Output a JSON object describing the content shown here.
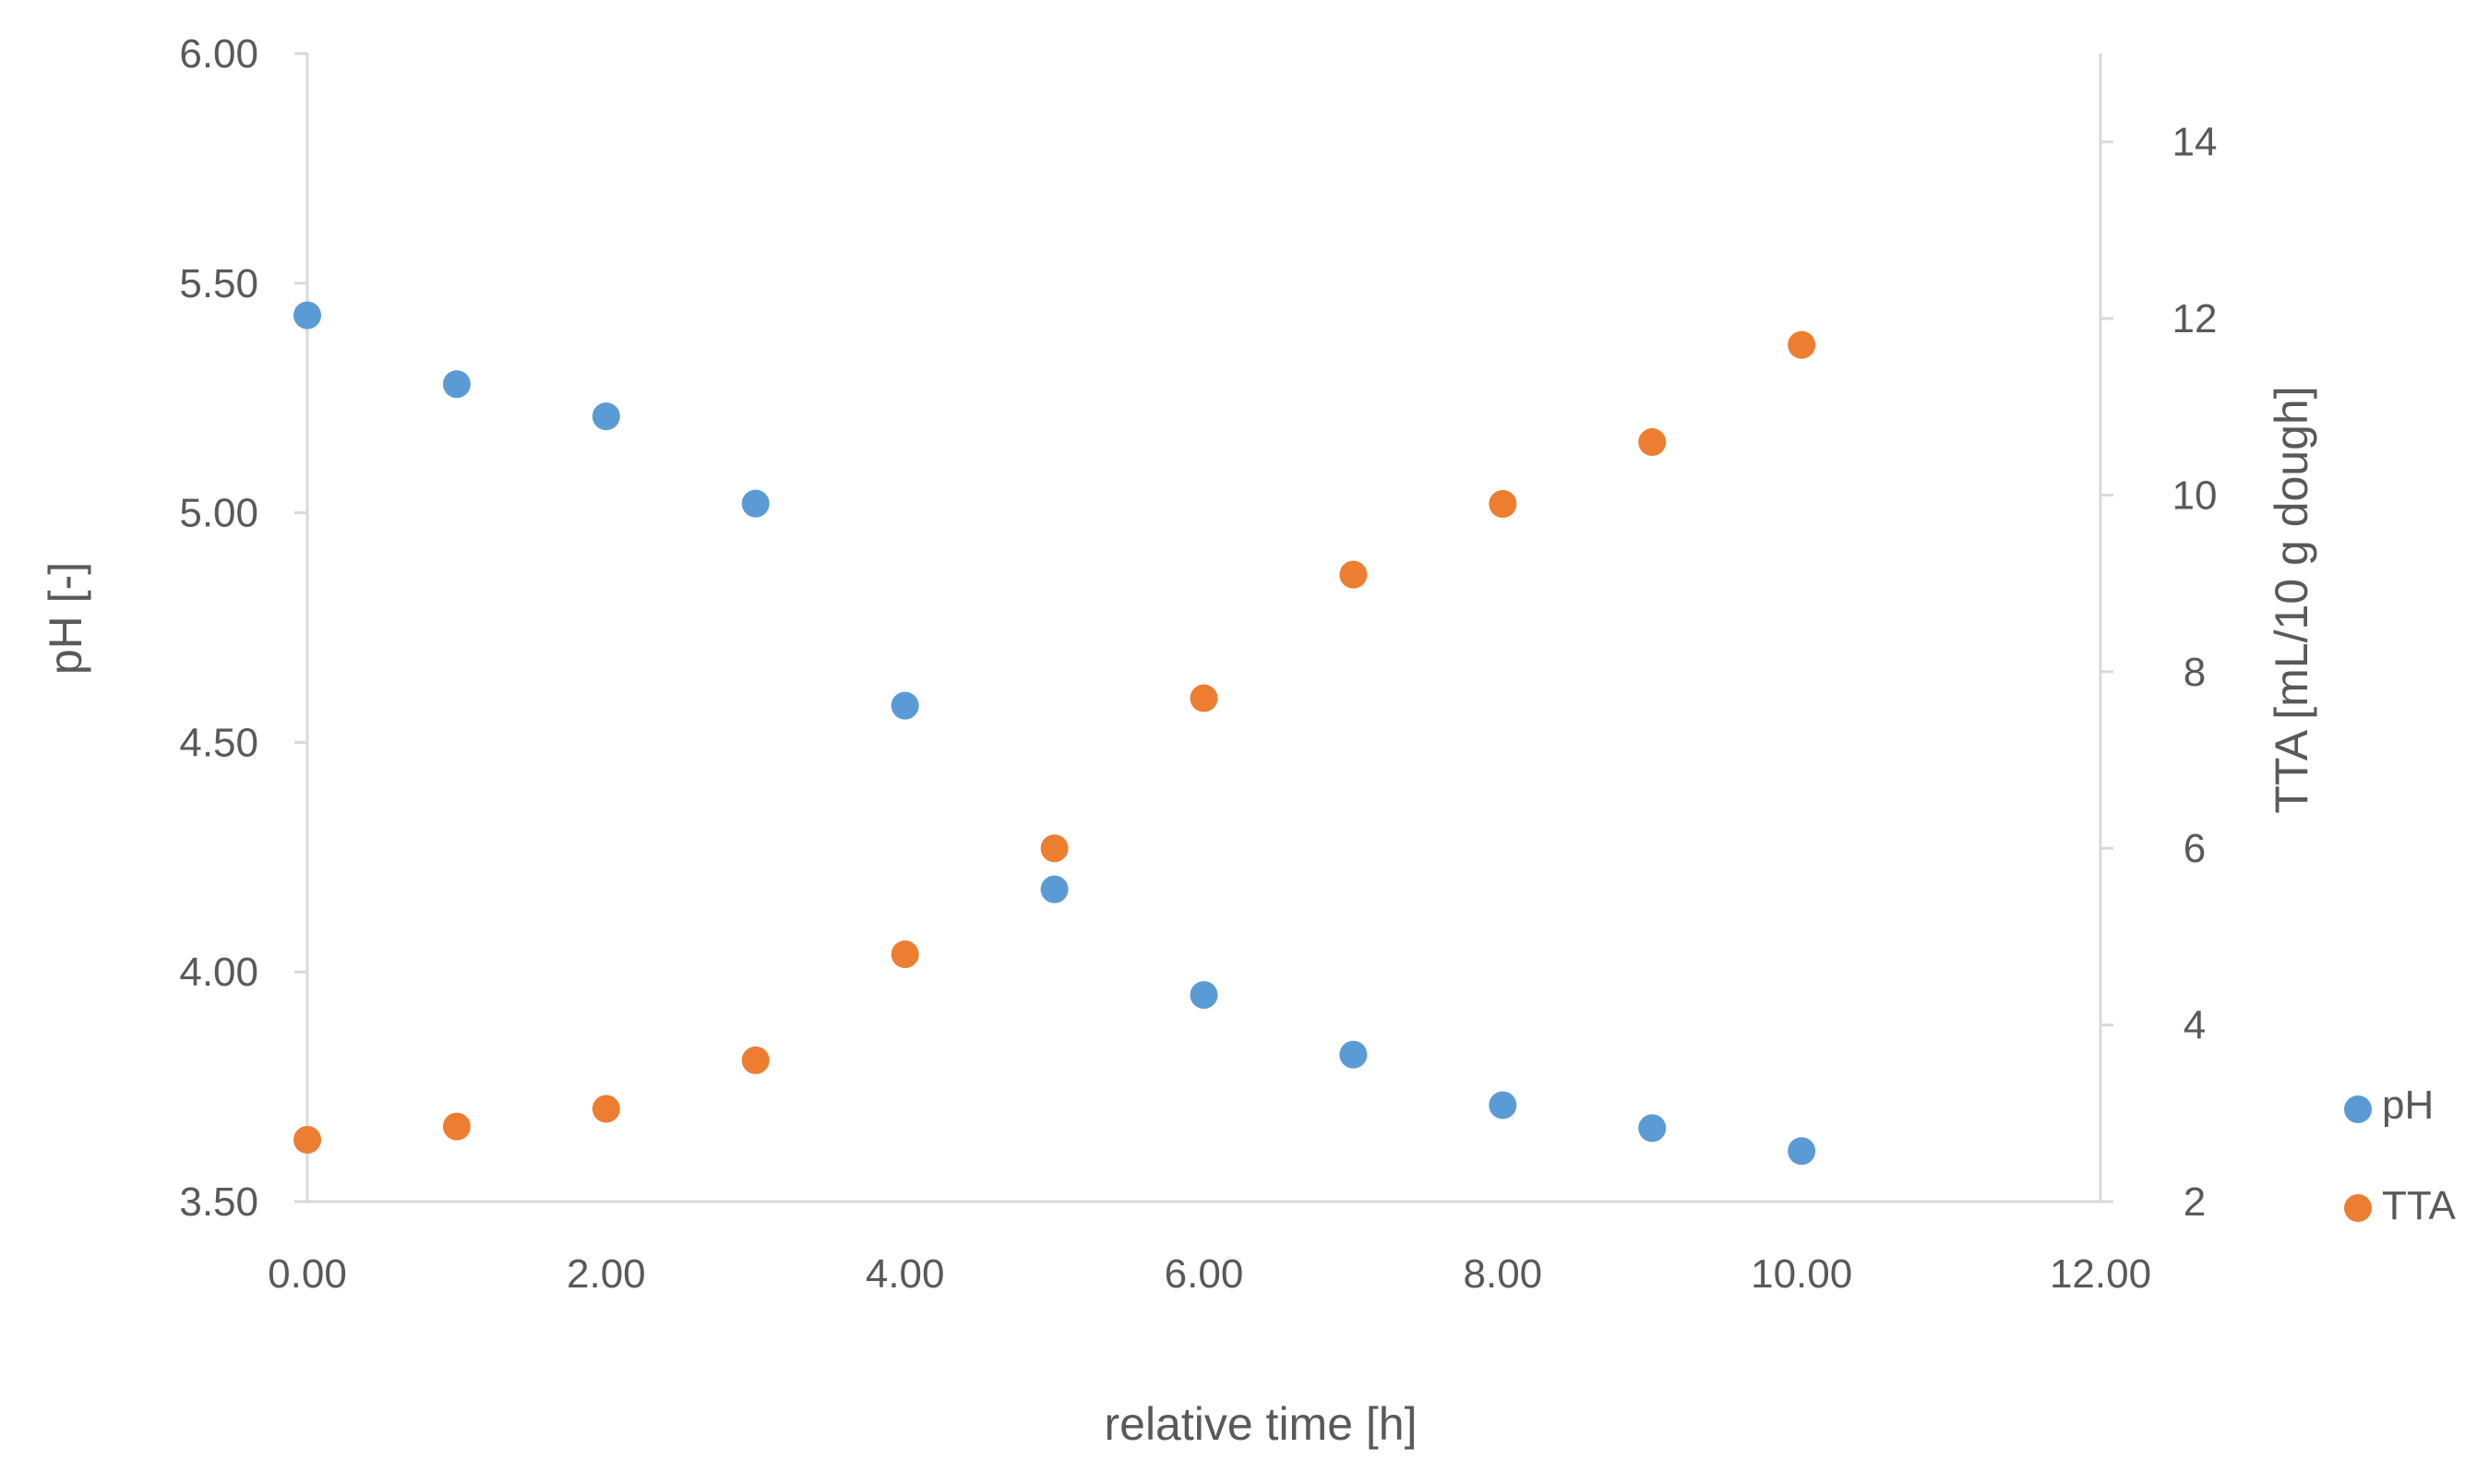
{
  "chart_data": {
    "type": "scatter",
    "title": "",
    "xlabel": "relative time [h]",
    "ylabel": "pH [-]",
    "y2label": "TTA [mL/10 g dough]",
    "xlim": [
      0,
      12
    ],
    "ylim": [
      3.5,
      6.0
    ],
    "y2lim": [
      2,
      15
    ],
    "x_ticks": [
      "0.00",
      "2.00",
      "4.00",
      "6.00",
      "8.00",
      "10.00",
      "12.00"
    ],
    "y_ticks": [
      "3.50",
      "4.00",
      "4.50",
      "5.00",
      "5.50",
      "6.00"
    ],
    "y2_ticks": [
      "2",
      "4",
      "6",
      "8",
      "10",
      "12",
      "14"
    ],
    "grid": false,
    "legend_position": "bottom-right",
    "series": [
      {
        "name": "pH",
        "axis": "left",
        "color": "#5B9BD5",
        "x": [
          0,
          1,
          2,
          3,
          4,
          5,
          6,
          7,
          8,
          9,
          10
        ],
        "y": [
          5.43,
          5.28,
          5.21,
          5.02,
          4.58,
          4.18,
          3.95,
          3.82,
          3.71,
          3.66,
          3.61
        ]
      },
      {
        "name": "TTA",
        "axis": "right",
        "color": "#ED7D31",
        "x": [
          0,
          1,
          2,
          3,
          4,
          5,
          6,
          7,
          8,
          9,
          10
        ],
        "y": [
          2.7,
          2.85,
          3.05,
          3.6,
          4.8,
          6.0,
          7.7,
          9.1,
          9.9,
          10.6,
          11.7
        ]
      }
    ]
  }
}
